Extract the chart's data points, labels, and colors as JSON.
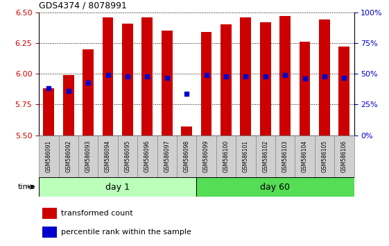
{
  "title": "GDS4374 / 8078991",
  "samples": [
    "GSM586091",
    "GSM586092",
    "GSM586093",
    "GSM586094",
    "GSM586095",
    "GSM586096",
    "GSM586097",
    "GSM586098",
    "GSM586099",
    "GSM586100",
    "GSM586101",
    "GSM586102",
    "GSM586103",
    "GSM586104",
    "GSM586105",
    "GSM586106"
  ],
  "bar_values": [
    5.88,
    5.99,
    6.2,
    6.46,
    6.41,
    6.46,
    6.35,
    5.57,
    6.34,
    6.4,
    6.46,
    6.42,
    6.47,
    6.26,
    6.44,
    6.22
  ],
  "blue_values": [
    5.88,
    5.86,
    5.93,
    5.99,
    5.98,
    5.98,
    5.97,
    5.84,
    5.99,
    5.98,
    5.98,
    5.98,
    5.99,
    5.96,
    5.98,
    5.97
  ],
  "bar_bottom": 5.5,
  "ylim_left": [
    5.5,
    6.5
  ],
  "ylim_right": [
    0,
    100
  ],
  "yticks_left": [
    5.5,
    5.75,
    6.0,
    6.25,
    6.5
  ],
  "yticks_right": [
    0,
    25,
    50,
    75,
    100
  ],
  "bar_color": "#cc0000",
  "blue_color": "#0000cc",
  "bar_width": 0.55,
  "group_day1": [
    0,
    1,
    2,
    3,
    4,
    5,
    6,
    7
  ],
  "group_day60": [
    8,
    9,
    10,
    11,
    12,
    13,
    14,
    15
  ],
  "day1_label": "day 1",
  "day60_label": "day 60",
  "day1_color": "#bbffbb",
  "day60_color": "#55dd55",
  "sample_box_color": "#d0d0d0",
  "grid_color": "#000000",
  "left_tick_color": "#cc0000",
  "right_tick_color": "#0000cc",
  "bg_color": "#ffffff",
  "time_label": "time",
  "legend_red": "transformed count",
  "legend_blue": "percentile rank within the sample"
}
